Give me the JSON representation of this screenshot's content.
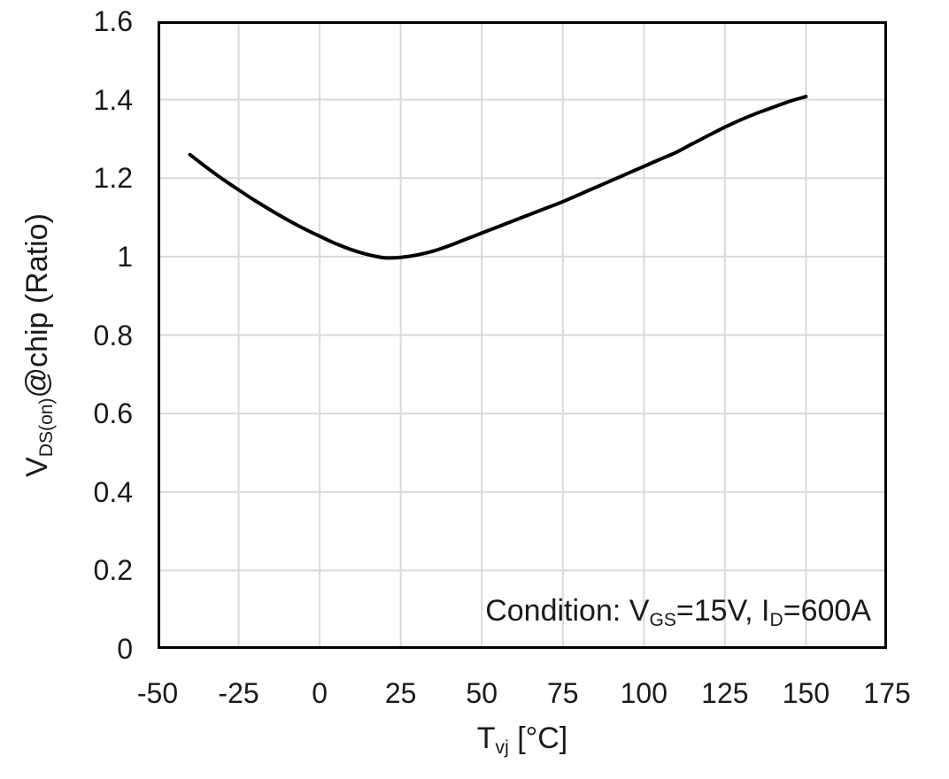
{
  "chart": {
    "background": "#ffffff",
    "frame_color": "#000000",
    "gridline_color": "#d9d9d9",
    "text_color": "#1a1a1a",
    "curve_color": "#000000"
  },
  "chart_data": {
    "type": "line",
    "title": "",
    "xlabel": "Tvj [°C]",
    "ylabel": "VDS(on)@chip (Ratio)",
    "xlabel_parts": [
      {
        "t": "T"
      },
      {
        "t": "vj",
        "sub": true
      },
      {
        "t": " [°C]"
      }
    ],
    "ylabel_parts": [
      {
        "t": "V"
      },
      {
        "t": "DS(on)",
        "sub": true
      },
      {
        "t": "@chip (Ratio)"
      }
    ],
    "annotation": "Condition: VGS=15V, ID=600A",
    "annotation_parts": [
      {
        "t": "Condition: V"
      },
      {
        "t": "GS",
        "sub": true
      },
      {
        "t": "=15V, I"
      },
      {
        "t": "D",
        "sub": true
      },
      {
        "t": "=600A"
      }
    ],
    "xlim": [
      -50,
      175
    ],
    "ylim": [
      0,
      1.6
    ],
    "grid": "both",
    "legend": "none",
    "x_ticks": [
      {
        "value": -50,
        "label": "-50"
      },
      {
        "value": -25,
        "label": "-25"
      },
      {
        "value": 0,
        "label": "0"
      },
      {
        "value": 25,
        "label": "25"
      },
      {
        "value": 50,
        "label": "50"
      },
      {
        "value": 75,
        "label": "75"
      },
      {
        "value": 100,
        "label": "100"
      },
      {
        "value": 125,
        "label": "125"
      },
      {
        "value": 150,
        "label": "150"
      },
      {
        "value": 175,
        "label": "175"
      }
    ],
    "y_ticks": [
      {
        "value": 0,
        "label": "0"
      },
      {
        "value": 0.2,
        "label": "0.2"
      },
      {
        "value": 0.4,
        "label": "0.4"
      },
      {
        "value": 0.6,
        "label": "0.6"
      },
      {
        "value": 0.8,
        "label": "0.8"
      },
      {
        "value": 1,
        "label": "1"
      },
      {
        "value": 1.2,
        "label": "1.2"
      },
      {
        "value": 1.4,
        "label": "1.4"
      },
      {
        "value": 1.6,
        "label": "1.6"
      }
    ],
    "series": [
      {
        "name": "VDS(on) ratio",
        "x": [
          -40,
          -25,
          0,
          25,
          50,
          75,
          100,
          125,
          150
        ],
        "values": [
          1.26,
          1.17,
          1.05,
          1.0,
          1.06,
          1.14,
          1.23,
          1.33,
          1.41
        ],
        "min_point": {
          "x": 20,
          "y": 1.0
        },
        "curve_points": [
          [
            -40,
            1.26
          ],
          [
            -35,
            1.228
          ],
          [
            -30,
            1.198
          ],
          [
            -25,
            1.17
          ],
          [
            -20,
            1.143
          ],
          [
            -15,
            1.118
          ],
          [
            -10,
            1.094
          ],
          [
            -5,
            1.072
          ],
          [
            0,
            1.052
          ],
          [
            5,
            1.033
          ],
          [
            10,
            1.017
          ],
          [
            15,
            1.005
          ],
          [
            20,
            0.997
          ],
          [
            25,
            0.998
          ],
          [
            30,
            1.004
          ],
          [
            35,
            1.014
          ],
          [
            40,
            1.028
          ],
          [
            45,
            1.044
          ],
          [
            50,
            1.06
          ],
          [
            55,
            1.076
          ],
          [
            60,
            1.092
          ],
          [
            65,
            1.108
          ],
          [
            70,
            1.124
          ],
          [
            75,
            1.14
          ],
          [
            80,
            1.158
          ],
          [
            85,
            1.176
          ],
          [
            90,
            1.194
          ],
          [
            95,
            1.212
          ],
          [
            100,
            1.23
          ],
          [
            105,
            1.248
          ],
          [
            110,
            1.266
          ],
          [
            115,
            1.288
          ],
          [
            120,
            1.309
          ],
          [
            125,
            1.33
          ],
          [
            130,
            1.349
          ],
          [
            135,
            1.366
          ],
          [
            140,
            1.381
          ],
          [
            145,
            1.396
          ],
          [
            150,
            1.408
          ]
        ]
      }
    ]
  }
}
